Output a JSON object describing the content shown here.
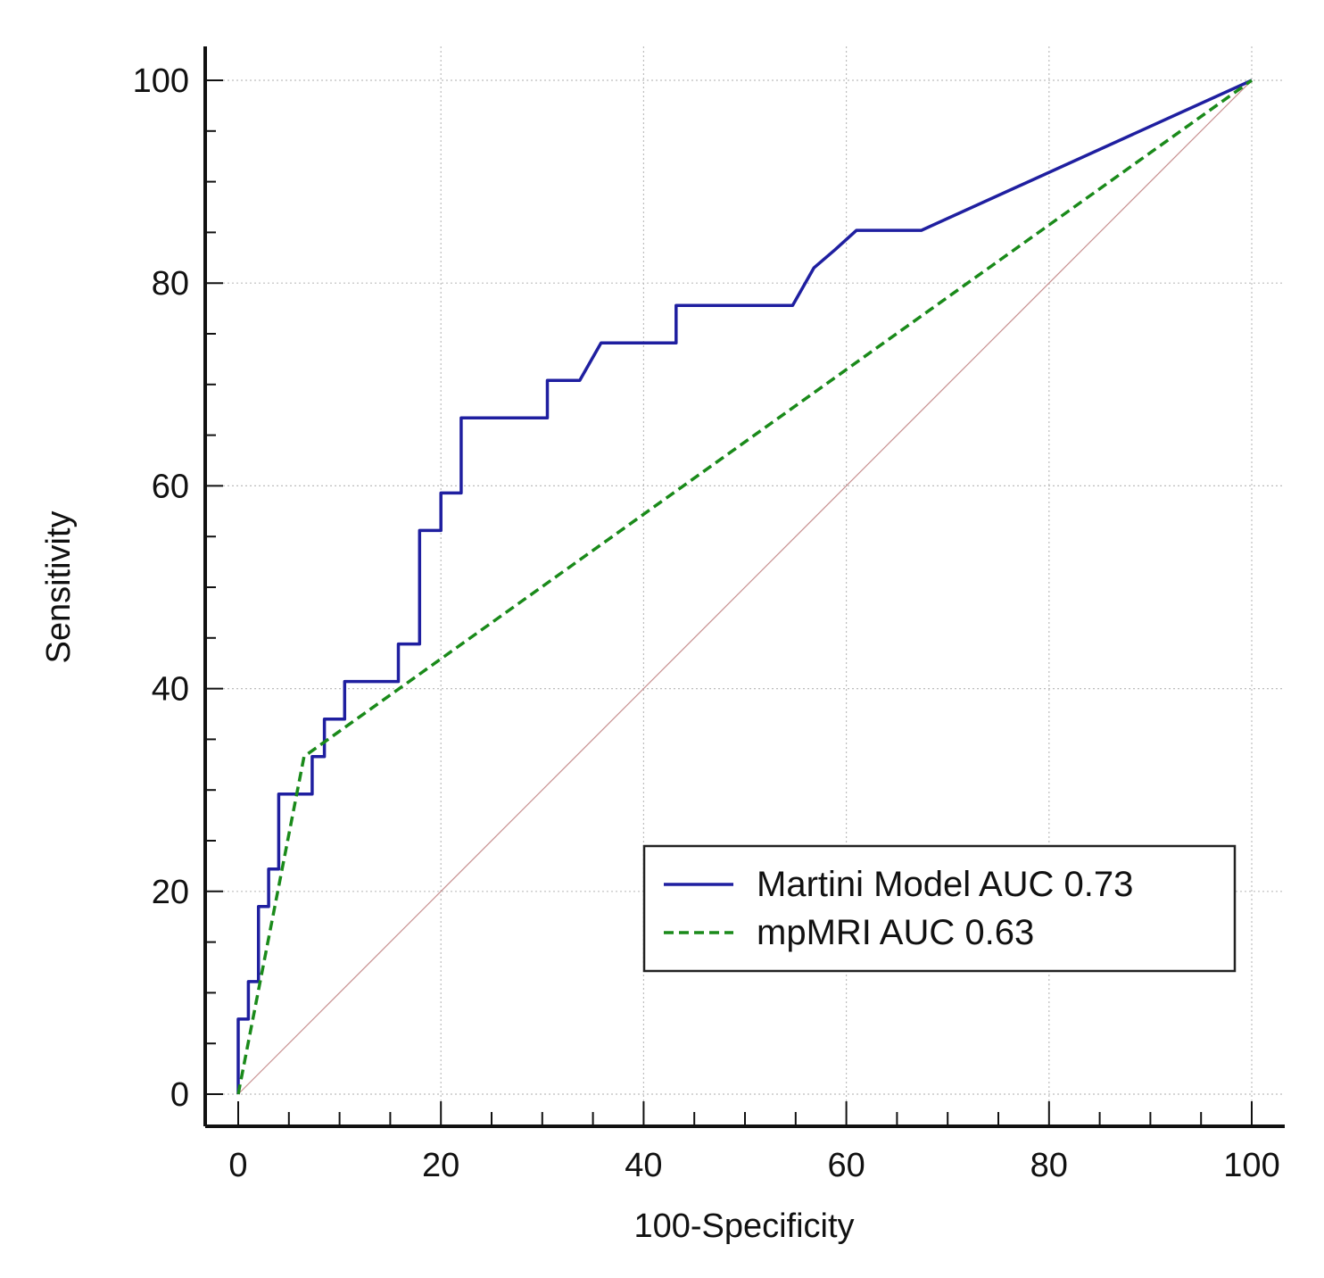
{
  "chart_data": {
    "type": "line",
    "title": "",
    "xlabel": "100-Specificity",
    "ylabel": "Sensitivity",
    "xlim": [
      0,
      100
    ],
    "ylim": [
      0,
      100
    ],
    "xticks": [
      0,
      20,
      40,
      60,
      80,
      100
    ],
    "yticks": [
      0,
      20,
      40,
      60,
      80,
      100
    ],
    "grid": true,
    "legend_position": "bottom-right",
    "series": [
      {
        "name": "Martini Model AUC 0.73",
        "color": "#1f1fa0",
        "style": "solid",
        "x": [
          0,
          0,
          1,
          1,
          2,
          2,
          3,
          3,
          4,
          4,
          7.3,
          7.3,
          8.5,
          8.5,
          10.5,
          10.5,
          15.8,
          15.8,
          17.9,
          17.9,
          20,
          20,
          22,
          22,
          30.5,
          30.5,
          33.7,
          35.8,
          43.2,
          43.2,
          54.7,
          56.8,
          58.9,
          61,
          67.4,
          100
        ],
        "y": [
          0,
          7.4,
          7.4,
          11.1,
          11.1,
          18.5,
          18.5,
          22.2,
          22.2,
          29.6,
          29.6,
          33.3,
          33.3,
          37,
          37,
          40.7,
          40.7,
          44.4,
          44.4,
          55.6,
          55.6,
          59.3,
          59.3,
          66.7,
          66.7,
          70.4,
          70.4,
          74.1,
          74.1,
          77.8,
          77.8,
          81.5,
          83.3,
          85.2,
          85.2,
          100
        ]
      },
      {
        "name": "mpMRI AUC 0.63",
        "color": "#1a8a1a",
        "style": "dashed",
        "x": [
          0,
          6.5,
          100
        ],
        "y": [
          0,
          33.3,
          100
        ]
      },
      {
        "name": "reference",
        "color": "#c89090",
        "style": "thin",
        "x": [
          0,
          100
        ],
        "y": [
          0,
          100
        ]
      }
    ]
  }
}
